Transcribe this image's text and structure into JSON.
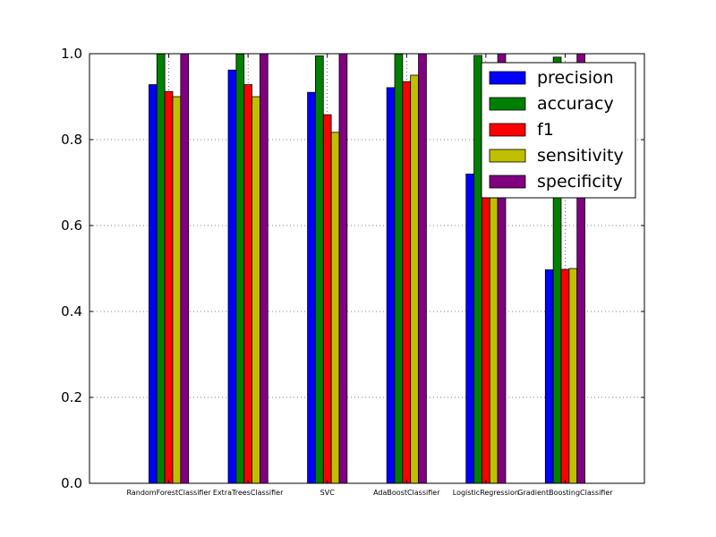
{
  "chart_data": {
    "type": "bar",
    "categories": [
      "RandomForestClassifier",
      "ExtraTreesClassifier",
      "SVC",
      "AdaBoostClassifier",
      "LogisticRegression",
      "GradientBoostingClassifier"
    ],
    "series": [
      {
        "name": "precision",
        "color": "#0000ff",
        "values": [
          0.928,
          0.962,
          0.91,
          0.921,
          0.72,
          0.497
        ]
      },
      {
        "name": "accuracy",
        "color": "#008000",
        "values": [
          0.999,
          0.999,
          0.995,
          0.999,
          0.996,
          0.992
        ]
      },
      {
        "name": "f1",
        "color": "#ff0000",
        "values": [
          0.912,
          0.928,
          0.858,
          0.935,
          0.7,
          0.498
        ]
      },
      {
        "name": "sensitivity",
        "color": "#bfbf00",
        "values": [
          0.9,
          0.9,
          0.817,
          0.95,
          0.7,
          0.5
        ]
      },
      {
        "name": "specificity",
        "color": "#800080",
        "values": [
          1.0,
          1.0,
          1.0,
          1.0,
          1.0,
          1.0
        ]
      }
    ],
    "ylim": [
      0,
      1.0
    ],
    "yticks": [
      "0.0",
      "0.2",
      "0.4",
      "0.6",
      "0.8",
      "1.0"
    ],
    "ytick_values": [
      0,
      0.2,
      0.4,
      0.6,
      0.8,
      1.0
    ],
    "grid": "dotted",
    "legend_position": "top-right"
  }
}
